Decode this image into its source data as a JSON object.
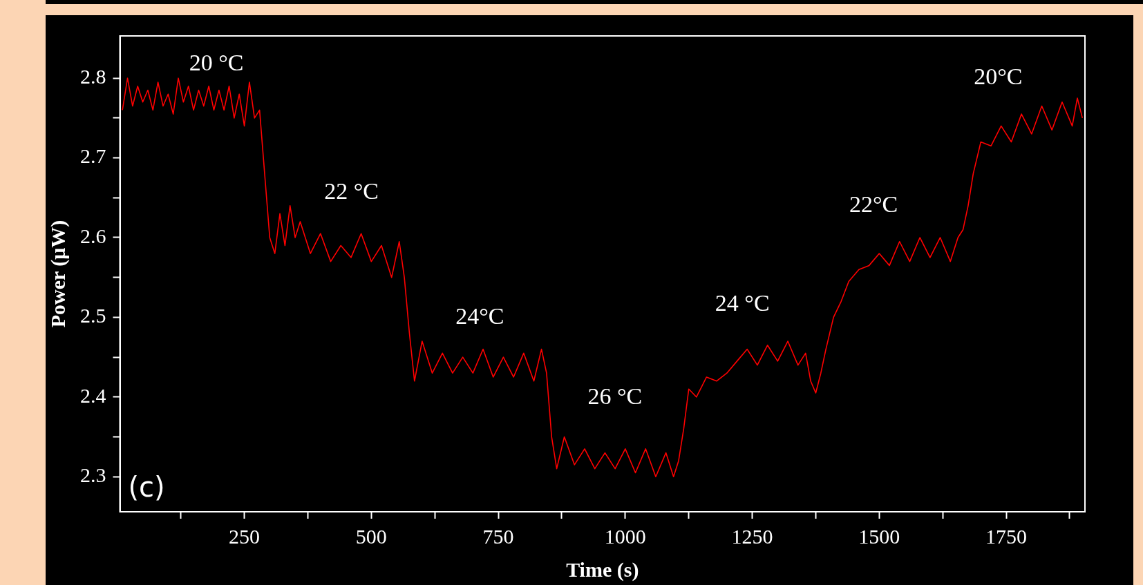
{
  "chart_data": {
    "type": "line",
    "xlabel": "Time (s)",
    "ylabel": "Power (μW)",
    "x": [
      10,
      20,
      30,
      40,
      50,
      60,
      70,
      80,
      90,
      100,
      110,
      120,
      130,
      140,
      150,
      160,
      170,
      180,
      190,
      200,
      210,
      220,
      230,
      240,
      250,
      260,
      270,
      280,
      290,
      300,
      310,
      320,
      330,
      340,
      350,
      360,
      380,
      400,
      420,
      440,
      460,
      480,
      500,
      520,
      540,
      555,
      565,
      575,
      585,
      600,
      620,
      640,
      660,
      680,
      700,
      720,
      740,
      760,
      780,
      800,
      820,
      835,
      845,
      855,
      865,
      880,
      900,
      920,
      940,
      960,
      980,
      1000,
      1020,
      1040,
      1060,
      1080,
      1095,
      1105,
      1115,
      1125,
      1140,
      1160,
      1180,
      1200,
      1220,
      1240,
      1260,
      1280,
      1300,
      1320,
      1340,
      1355,
      1365,
      1375,
      1385,
      1395,
      1410,
      1425,
      1440,
      1460,
      1480,
      1500,
      1520,
      1540,
      1560,
      1580,
      1600,
      1620,
      1640,
      1655,
      1665,
      1675,
      1685,
      1700,
      1720,
      1740,
      1760,
      1780,
      1800,
      1820,
      1840,
      1860,
      1880,
      1890,
      1900
    ],
    "series": [
      {
        "color": "#ff0000",
        "values": [
          2.76,
          2.8,
          2.765,
          2.79,
          2.77,
          2.785,
          2.76,
          2.795,
          2.765,
          2.78,
          2.755,
          2.8,
          2.77,
          2.79,
          2.76,
          2.785,
          2.765,
          2.79,
          2.76,
          2.785,
          2.76,
          2.79,
          2.75,
          2.78,
          2.74,
          2.795,
          2.75,
          2.76,
          2.68,
          2.6,
          2.58,
          2.63,
          2.59,
          2.64,
          2.6,
          2.62,
          2.58,
          2.605,
          2.57,
          2.59,
          2.575,
          2.605,
          2.57,
          2.59,
          2.55,
          2.595,
          2.55,
          2.48,
          2.42,
          2.47,
          2.43,
          2.455,
          2.43,
          2.45,
          2.43,
          2.46,
          2.425,
          2.45,
          2.425,
          2.455,
          2.42,
          2.46,
          2.43,
          2.35,
          2.31,
          2.35,
          2.315,
          2.335,
          2.31,
          2.33,
          2.31,
          2.335,
          2.305,
          2.335,
          2.3,
          2.33,
          2.3,
          2.32,
          2.36,
          2.41,
          2.4,
          2.425,
          2.42,
          2.43,
          2.445,
          2.46,
          2.44,
          2.465,
          2.445,
          2.47,
          2.44,
          2.455,
          2.42,
          2.405,
          2.43,
          2.46,
          2.5,
          2.52,
          2.545,
          2.56,
          2.565,
          2.58,
          2.565,
          2.595,
          2.57,
          2.6,
          2.575,
          2.6,
          2.57,
          2.6,
          2.61,
          2.64,
          2.68,
          2.72,
          2.715,
          2.74,
          2.72,
          2.755,
          2.73,
          2.765,
          2.735,
          2.77,
          2.74,
          2.775,
          2.75
        ]
      }
    ],
    "xlim": [
      5,
      1905
    ],
    "ylim": [
      2.256,
      2.853
    ],
    "xticks": [
      {
        "value": 125,
        "label": null
      },
      250,
      {
        "value": 375,
        "label": null
      },
      500,
      {
        "value": 625,
        "label": null
      },
      750,
      {
        "value": 875,
        "label": null
      },
      1000,
      {
        "value": 1125,
        "label": null
      },
      1250,
      {
        "value": 1375,
        "label": null
      },
      1500,
      {
        "value": 1625,
        "label": null
      },
      1750,
      {
        "value": 1875,
        "label": null
      }
    ],
    "yticks": [
      2.3,
      {
        "value": 2.35,
        "label": null
      },
      2.4,
      {
        "value": 2.45,
        "label": null
      },
      2.5,
      {
        "value": 2.55,
        "label": null
      },
      2.6,
      {
        "value": 2.65,
        "label": null
      },
      2.7,
      {
        "value": 2.75,
        "label": null
      },
      2.8
    ],
    "grid": false,
    "legend": false,
    "marker": "none",
    "line_style": "solid",
    "annotations": [
      "20 °C",
      "22 °C",
      "24°C",
      "26 °C",
      "24 °C",
      "22°C",
      "20°C",
      "(c)"
    ]
  }
}
